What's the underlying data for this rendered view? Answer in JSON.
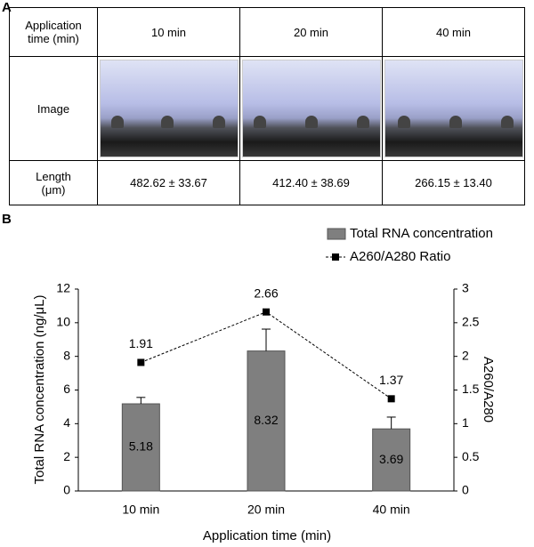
{
  "panel_labels": [
    "A",
    "B"
  ],
  "table": {
    "header": [
      "Application time (min)",
      "10 min",
      "20 min",
      "40 min"
    ],
    "image_row_label": "Image",
    "length_row": [
      "Length (μm)",
      "482.62 ± 33.67",
      "412.40 ± 38.69",
      "266.15 ± 13.40"
    ]
  },
  "chart_data": {
    "type": "bar_line",
    "x_label": "Application time (min)",
    "y_label": "Total RNA concentration (ng/μL)",
    "y2_label": "A260/A280",
    "categories": [
      "10 min",
      "20 min",
      "40 min"
    ],
    "ylim": [
      0,
      12
    ],
    "yticks": [
      0,
      2,
      4,
      6,
      8,
      10,
      12
    ],
    "y2lim": [
      0,
      3
    ],
    "y2ticks": [
      0,
      0.5,
      1,
      1.5,
      2,
      2.5,
      3
    ],
    "series": [
      {
        "name": "Total RNA concentration",
        "type": "bar",
        "color": "#7f7f7f",
        "values": [
          5.18,
          8.32,
          3.69
        ],
        "errors": [
          0.38,
          1.3,
          0.7
        ]
      },
      {
        "name": "A260/A280 Ratio",
        "type": "line",
        "axis": "y2",
        "color": "#000000",
        "values": [
          1.91,
          2.66,
          1.37
        ]
      }
    ]
  }
}
